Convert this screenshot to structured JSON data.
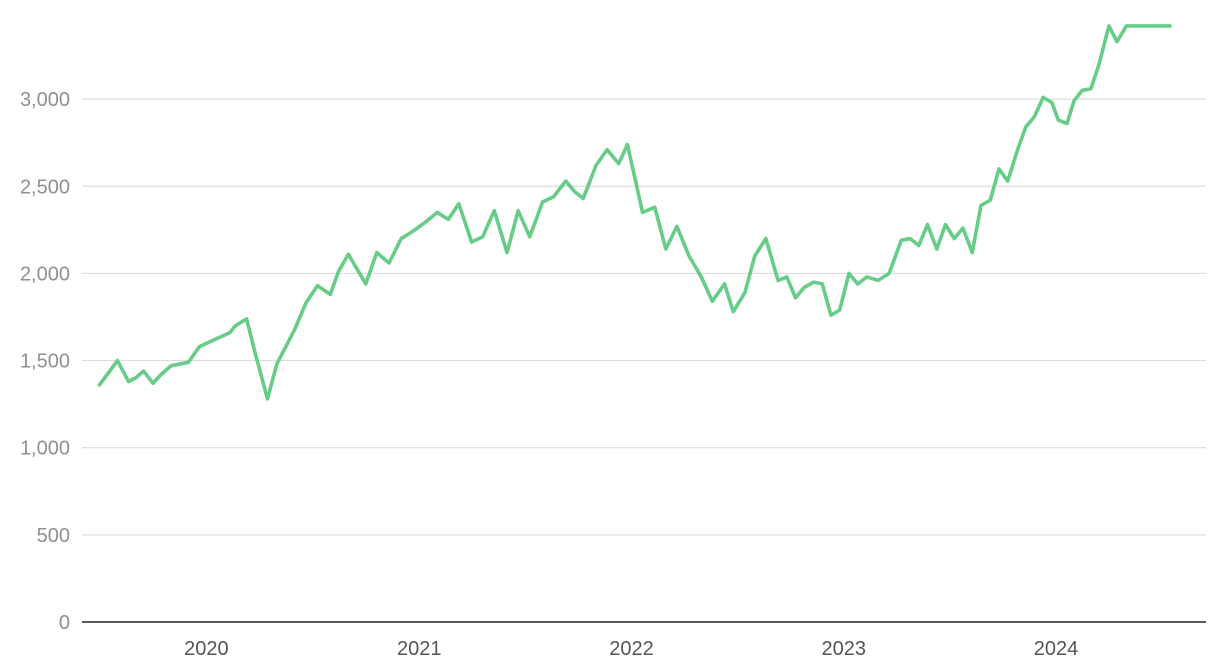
{
  "chart_data": {
    "type": "line",
    "title": "",
    "xlabel": "",
    "ylabel": "",
    "ylim": [
      0,
      3500
    ],
    "xlim": [
      "2019-06-01",
      "2024-09-15"
    ],
    "y_ticks": [
      0,
      500,
      1000,
      1500,
      2000,
      2500,
      3000
    ],
    "y_tick_labels": [
      "0",
      "500",
      "1,000",
      "1,500",
      "2,000",
      "2,500",
      "3,000"
    ],
    "x_ticks": [
      "2020-01-01",
      "2021-01-01",
      "2022-01-01",
      "2023-01-01",
      "2024-01-01"
    ],
    "x_tick_labels": [
      "2020",
      "2021",
      "2022",
      "2023",
      "2024"
    ],
    "grid": true,
    "legend": "none",
    "colors": {
      "line": "#66cc88"
    },
    "series": [
      {
        "x": [
          "2019-07-01",
          "2019-08-01",
          "2019-08-20",
          "2019-09-01",
          "2019-09-15",
          "2019-10-01",
          "2019-10-15",
          "2019-11-01",
          "2019-12-01",
          "2019-12-20",
          "2020-01-15",
          "2020-02-10",
          "2020-02-20",
          "2020-03-10",
          "2020-03-25",
          "2020-04-15",
          "2020-05-01",
          "2020-06-01",
          "2020-06-20",
          "2020-07-10",
          "2020-08-01",
          "2020-08-15",
          "2020-09-01",
          "2020-10-01",
          "2020-10-20",
          "2020-11-10",
          "2020-12-01",
          "2020-12-20",
          "2021-01-10",
          "2021-02-01",
          "2021-02-20",
          "2021-03-10",
          "2021-04-01",
          "2021-04-20",
          "2021-05-10",
          "2021-06-01",
          "2021-06-20",
          "2021-07-10",
          "2021-08-01",
          "2021-08-20",
          "2021-09-10",
          "2021-09-25",
          "2021-10-10",
          "2021-11-01",
          "2021-11-20",
          "2021-12-10",
          "2021-12-25",
          "2022-01-20",
          "2022-02-10",
          "2022-03-01",
          "2022-03-20",
          "2022-04-10",
          "2022-05-01",
          "2022-05-20",
          "2022-06-10",
          "2022-06-25",
          "2022-07-15",
          "2022-08-01",
          "2022-08-20",
          "2022-09-10",
          "2022-09-25",
          "2022-10-10",
          "2022-10-25",
          "2022-11-10",
          "2022-11-25",
          "2022-12-10",
          "2022-12-25",
          "2023-01-10",
          "2023-01-25",
          "2023-02-10",
          "2023-03-01",
          "2023-03-20",
          "2023-04-10",
          "2023-04-25",
          "2023-05-10",
          "2023-05-25",
          "2023-06-10",
          "2023-06-25",
          "2023-07-10",
          "2023-07-25",
          "2023-08-10",
          "2023-08-25",
          "2023-09-10",
          "2023-09-25",
          "2023-10-10",
          "2023-10-27",
          "2023-11-10",
          "2023-11-25",
          "2023-12-10",
          "2023-12-25",
          "2024-01-05",
          "2024-01-20",
          "2024-02-01",
          "2024-02-15",
          "2024-03-01",
          "2024-03-15",
          "2024-04-01",
          "2024-04-15",
          "2024-05-01",
          "2024-05-15",
          "2024-06-01",
          "2024-06-15",
          "2024-06-25",
          "2024-07-05",
          "2024-07-15"
        ],
        "y": [
          1360,
          1500,
          1380,
          1400,
          1440,
          1370,
          1420,
          1470,
          1490,
          1580,
          1620,
          1660,
          1700,
          1740,
          1540,
          1280,
          1480,
          1680,
          1830,
          1930,
          1880,
          2010,
          2110,
          1940,
          2120,
          2060,
          2200,
          2240,
          2290,
          2350,
          2310,
          2400,
          2180,
          2210,
          2360,
          2120,
          2360,
          2210,
          2410,
          2440,
          2530,
          2470,
          2430,
          2620,
          2710,
          2630,
          2740,
          2350,
          2380,
          2140,
          2270,
          2100,
          1980,
          1840,
          1940,
          1780,
          1890,
          2100,
          2200,
          1960,
          1980,
          1860,
          1920,
          1950,
          1940,
          1760,
          1790,
          2000,
          1940,
          1980,
          1960,
          2000,
          2190,
          2200,
          2160,
          2280,
          2140,
          2280,
          2200,
          2260,
          2120,
          2390,
          2420,
          2600,
          2530,
          2710,
          2840,
          2900,
          3010,
          2980,
          2880,
          2860,
          2990,
          3050,
          3060,
          3200,
          3420,
          3330,
          3420,
          3420,
          3420,
          3420,
          3420,
          3420,
          3420
        ]
      }
    ]
  }
}
